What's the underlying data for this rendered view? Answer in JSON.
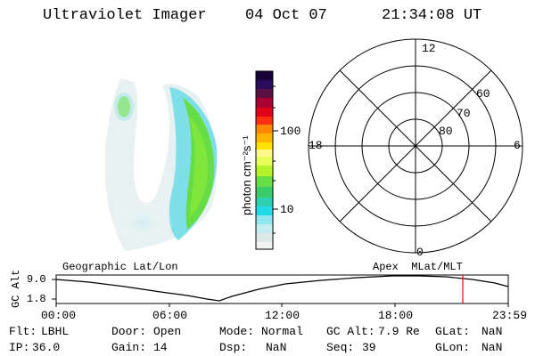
{
  "header": {
    "instrument": "Ultraviolet Imager",
    "date": "04 Oct 07",
    "time": "21:34:08 UT"
  },
  "colorbar": {
    "unit_label": "photon cm⁻²s⁻¹",
    "ticks": [
      "100",
      "10"
    ]
  },
  "polar_plot": {
    "mlt_labels": {
      "top": "12",
      "left": "18",
      "right": "6",
      "bottom": "0"
    },
    "lat_labels": [
      "60",
      "70",
      "80"
    ]
  },
  "coord_labels": {
    "geographic": "Geographic Lat/Lon",
    "apex": "Apex  MLat/MLT"
  },
  "altitude_plot": {
    "ylabel": "GC Alt",
    "yticks": [
      "9.0",
      "1.8"
    ],
    "xticks": [
      "00:00",
      "06:00",
      "12:00",
      "18:00",
      "23:59"
    ],
    "marker_color": "#ff0000"
  },
  "status": {
    "flt_label": "Flt:",
    "flt_value": "LBHL",
    "ip_label": "IP:",
    "ip_value": "36.0",
    "door_label": "Door:",
    "door_value": "Open",
    "gain_label": "Gain:",
    "gain_value": "14",
    "mode_label": "Mode:",
    "mode_value": "Normal",
    "dsp_label": "Dsp:",
    "dsp_value": "NaN",
    "gcalt_label": "GC Alt:",
    "gcalt_value": "7.9 Re",
    "seq_label": "Seq:",
    "seq_value": "39",
    "glat_label": "GLat:",
    "glat_value": "NaN",
    "glon_label": "GLon:",
    "glon_value": "NaN"
  }
}
